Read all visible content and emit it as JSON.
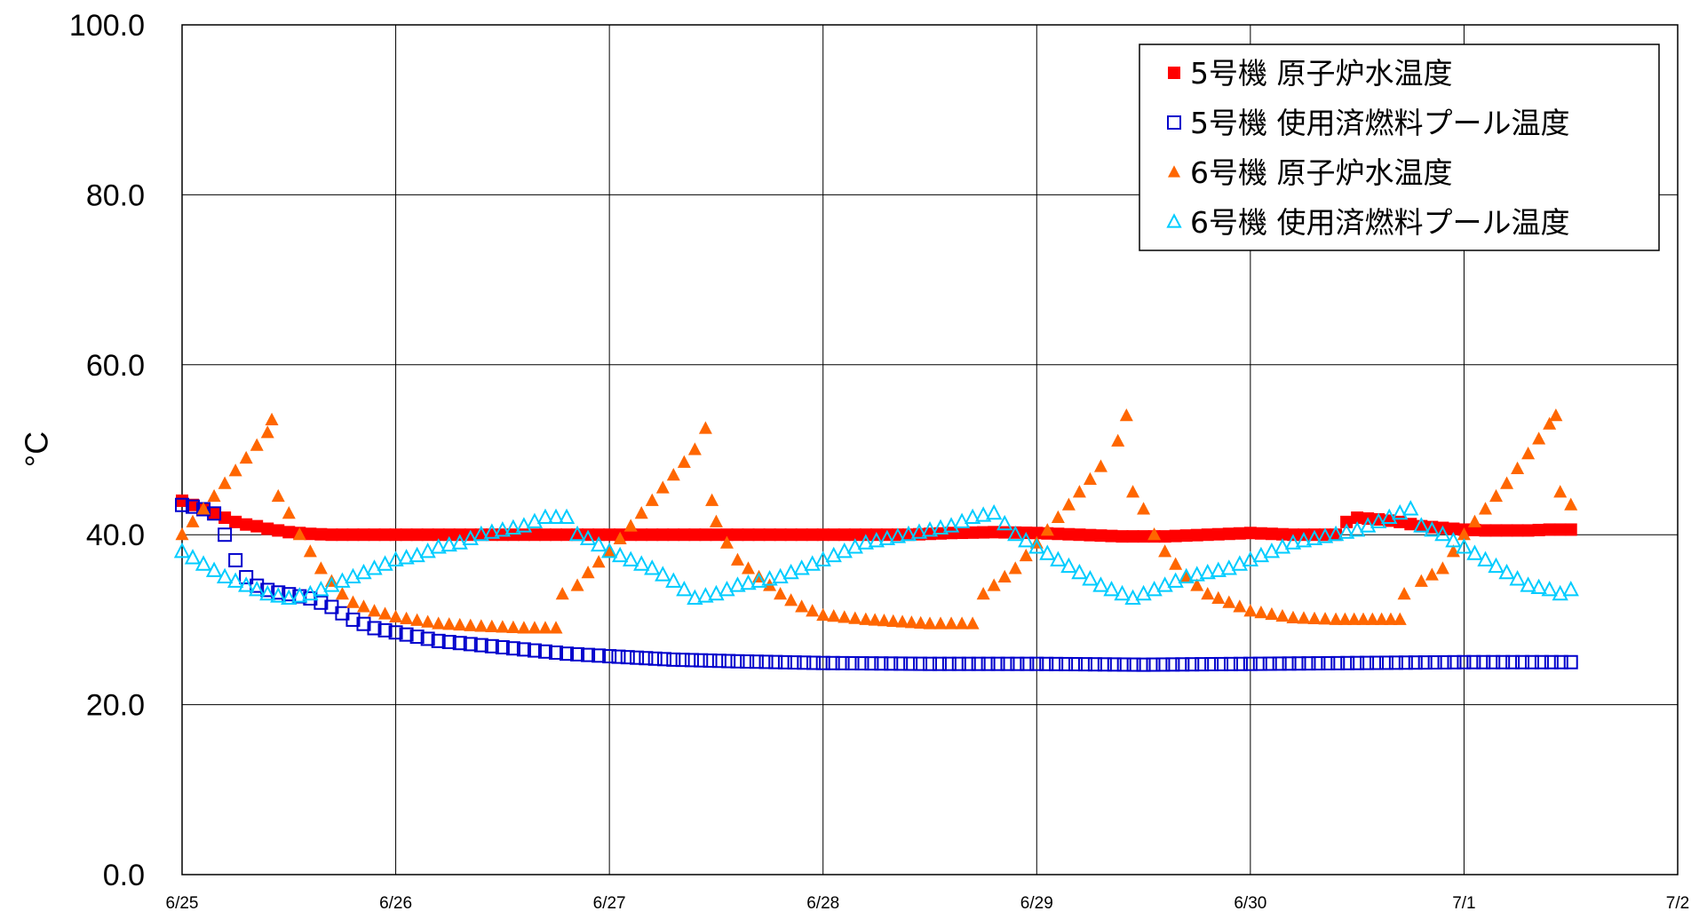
{
  "chart_data": {
    "type": "scatter",
    "ylabel": "°C",
    "xlabel": "",
    "ylim": [
      0,
      100
    ],
    "xlim": [
      0,
      7
    ],
    "yticks": [
      "0.0",
      "20.0",
      "40.0",
      "60.0",
      "80.0",
      "100.0"
    ],
    "xticks": [
      "6/25",
      "6/26",
      "6/27",
      "6/28",
      "6/29",
      "6/30",
      "7/1",
      "7/2"
    ],
    "grid": true,
    "legend_position": "top-right",
    "series": [
      {
        "name": "5号機 原子炉水温度",
        "marker": "square-filled",
        "color": "#ff0000",
        "points": [
          [
            0,
            44
          ],
          [
            0.05,
            43.5
          ],
          [
            0.1,
            43
          ],
          [
            0.15,
            42.5
          ],
          [
            0.2,
            42
          ],
          [
            0.25,
            41.5
          ],
          [
            0.3,
            41.2
          ],
          [
            0.35,
            41
          ],
          [
            0.4,
            40.7
          ],
          [
            0.45,
            40.5
          ],
          [
            0.5,
            40.3
          ],
          [
            0.6,
            40.1
          ],
          [
            0.7,
            40
          ],
          [
            0.8,
            40
          ],
          [
            1,
            40
          ],
          [
            1.2,
            40
          ],
          [
            1.4,
            40
          ],
          [
            1.6,
            40
          ],
          [
            1.8,
            40
          ],
          [
            2,
            40
          ],
          [
            2.2,
            40
          ],
          [
            2.4,
            40
          ],
          [
            2.6,
            40
          ],
          [
            2.8,
            40
          ],
          [
            3,
            40
          ],
          [
            3.2,
            40
          ],
          [
            3.4,
            40
          ],
          [
            3.6,
            40.2
          ],
          [
            3.8,
            40.3
          ],
          [
            4,
            40.2
          ],
          [
            4.2,
            40
          ],
          [
            4.4,
            39.8
          ],
          [
            4.6,
            39.8
          ],
          [
            4.8,
            40
          ],
          [
            5,
            40.2
          ],
          [
            5.2,
            40
          ],
          [
            5.4,
            40
          ],
          [
            5.45,
            41.5
          ],
          [
            5.5,
            42
          ],
          [
            5.6,
            41.8
          ],
          [
            5.7,
            41.5
          ],
          [
            5.8,
            41
          ],
          [
            5.9,
            40.8
          ],
          [
            6,
            40.6
          ],
          [
            6.1,
            40.5
          ],
          [
            6.2,
            40.5
          ],
          [
            6.3,
            40.5
          ],
          [
            6.4,
            40.6
          ],
          [
            6.5,
            40.6
          ]
        ]
      },
      {
        "name": "5号機 使用済燃料プール温度",
        "marker": "square-open",
        "color": "#0000cc",
        "points": [
          [
            0,
            43.5
          ],
          [
            0.05,
            43.3
          ],
          [
            0.1,
            43
          ],
          [
            0.15,
            42.5
          ],
          [
            0.2,
            40
          ],
          [
            0.25,
            37
          ],
          [
            0.3,
            35
          ],
          [
            0.35,
            34
          ],
          [
            0.4,
            33.5
          ],
          [
            0.45,
            33.2
          ],
          [
            0.5,
            33
          ],
          [
            0.6,
            32.5
          ],
          [
            0.7,
            31.5
          ],
          [
            0.8,
            30
          ],
          [
            0.9,
            29
          ],
          [
            1,
            28.5
          ],
          [
            1.2,
            27.5
          ],
          [
            1.4,
            27
          ],
          [
            1.6,
            26.5
          ],
          [
            1.8,
            26
          ],
          [
            2,
            25.7
          ],
          [
            2.3,
            25.3
          ],
          [
            2.6,
            25.1
          ],
          [
            3,
            24.9
          ],
          [
            3.5,
            24.8
          ],
          [
            4,
            24.8
          ],
          [
            4.5,
            24.7
          ],
          [
            5,
            24.8
          ],
          [
            5.5,
            24.9
          ],
          [
            6,
            25
          ],
          [
            6.5,
            25
          ]
        ]
      },
      {
        "name": "6号機 原子炉水温度",
        "marker": "triangle-filled",
        "color": "#ff6600",
        "points": [
          [
            0,
            40
          ],
          [
            0.05,
            41.5
          ],
          [
            0.1,
            43
          ],
          [
            0.15,
            44.5
          ],
          [
            0.2,
            46
          ],
          [
            0.25,
            47.5
          ],
          [
            0.3,
            49
          ],
          [
            0.35,
            50.5
          ],
          [
            0.4,
            52
          ],
          [
            0.42,
            53.5
          ],
          [
            0.45,
            44.5
          ],
          [
            0.5,
            42.5
          ],
          [
            0.55,
            40
          ],
          [
            0.6,
            38
          ],
          [
            0.65,
            36
          ],
          [
            0.7,
            34.5
          ],
          [
            0.75,
            33
          ],
          [
            0.8,
            32
          ],
          [
            0.9,
            31
          ],
          [
            1,
            30.3
          ],
          [
            1.2,
            29.5
          ],
          [
            1.4,
            29.2
          ],
          [
            1.6,
            29
          ],
          [
            1.75,
            29
          ],
          [
            1.78,
            33
          ],
          [
            1.85,
            34
          ],
          [
            1.9,
            35.5
          ],
          [
            2,
            38
          ],
          [
            2.1,
            41
          ],
          [
            2.2,
            44
          ],
          [
            2.3,
            47
          ],
          [
            2.4,
            50
          ],
          [
            2.45,
            52.5
          ],
          [
            2.48,
            44
          ],
          [
            2.5,
            41.5
          ],
          [
            2.55,
            39
          ],
          [
            2.6,
            37
          ],
          [
            2.7,
            35
          ],
          [
            2.8,
            33
          ],
          [
            2.9,
            31.5
          ],
          [
            3,
            30.5
          ],
          [
            3.2,
            30
          ],
          [
            3.5,
            29.5
          ],
          [
            3.7,
            29.5
          ],
          [
            3.75,
            33
          ],
          [
            3.8,
            34
          ],
          [
            3.9,
            36
          ],
          [
            4,
            39
          ],
          [
            4.1,
            42
          ],
          [
            4.2,
            45
          ],
          [
            4.3,
            48
          ],
          [
            4.38,
            51
          ],
          [
            4.42,
            54
          ],
          [
            4.45,
            45
          ],
          [
            4.5,
            43
          ],
          [
            4.55,
            40
          ],
          [
            4.6,
            38
          ],
          [
            4.7,
            35
          ],
          [
            4.8,
            33
          ],
          [
            4.9,
            32
          ],
          [
            5,
            31
          ],
          [
            5.2,
            30.2
          ],
          [
            5.4,
            30
          ],
          [
            5.7,
            30
          ],
          [
            5.72,
            33
          ],
          [
            5.8,
            34.5
          ],
          [
            5.9,
            36
          ],
          [
            6,
            40
          ],
          [
            6.1,
            43
          ],
          [
            6.2,
            46
          ],
          [
            6.3,
            49.5
          ],
          [
            6.4,
            53
          ],
          [
            6.43,
            54
          ],
          [
            6.45,
            45
          ],
          [
            6.5,
            43.5
          ]
        ]
      },
      {
        "name": "6号機 使用済燃料プール温度",
        "marker": "triangle-open",
        "color": "#00ccff",
        "points": [
          [
            0,
            38
          ],
          [
            0.1,
            36.5
          ],
          [
            0.2,
            35
          ],
          [
            0.3,
            34
          ],
          [
            0.4,
            33
          ],
          [
            0.5,
            32.5
          ],
          [
            0.6,
            33
          ],
          [
            0.7,
            34
          ],
          [
            0.8,
            35
          ],
          [
            0.9,
            36
          ],
          [
            1,
            37
          ],
          [
            1.1,
            37.5
          ],
          [
            1.2,
            38.5
          ],
          [
            1.3,
            39
          ],
          [
            1.4,
            40
          ],
          [
            1.5,
            40.5
          ],
          [
            1.6,
            41
          ],
          [
            1.7,
            42
          ],
          [
            1.8,
            42
          ],
          [
            1.85,
            40
          ],
          [
            1.9,
            39.5
          ],
          [
            2,
            38
          ],
          [
            2.1,
            37
          ],
          [
            2.2,
            36
          ],
          [
            2.3,
            34.5
          ],
          [
            2.4,
            32.5
          ],
          [
            2.5,
            33
          ],
          [
            2.6,
            34
          ],
          [
            2.7,
            34.5
          ],
          [
            2.8,
            35
          ],
          [
            2.9,
            36
          ],
          [
            3,
            37
          ],
          [
            3.1,
            38
          ],
          [
            3.2,
            39
          ],
          [
            3.3,
            39.5
          ],
          [
            3.4,
            40
          ],
          [
            3.5,
            40.5
          ],
          [
            3.6,
            41
          ],
          [
            3.7,
            42
          ],
          [
            3.8,
            42.5
          ],
          [
            3.9,
            40
          ],
          [
            4,
            38.5
          ],
          [
            4.1,
            37
          ],
          [
            4.2,
            35.5
          ],
          [
            4.3,
            34
          ],
          [
            4.4,
            33
          ],
          [
            4.45,
            32.5
          ],
          [
            4.5,
            33
          ],
          [
            4.6,
            34
          ],
          [
            4.7,
            35
          ],
          [
            4.8,
            35.5
          ],
          [
            4.9,
            36
          ],
          [
            5,
            37
          ],
          [
            5.1,
            38
          ],
          [
            5.2,
            39
          ],
          [
            5.3,
            39.5
          ],
          [
            5.4,
            40
          ],
          [
            5.5,
            40.5
          ],
          [
            5.6,
            41.5
          ],
          [
            5.7,
            42.5
          ],
          [
            5.75,
            43
          ],
          [
            5.8,
            41
          ],
          [
            5.9,
            40
          ],
          [
            6,
            38.5
          ],
          [
            6.1,
            37
          ],
          [
            6.2,
            35.5
          ],
          [
            6.3,
            34
          ],
          [
            6.4,
            33.5
          ],
          [
            6.45,
            33
          ],
          [
            6.5,
            33.5
          ]
        ]
      }
    ]
  }
}
